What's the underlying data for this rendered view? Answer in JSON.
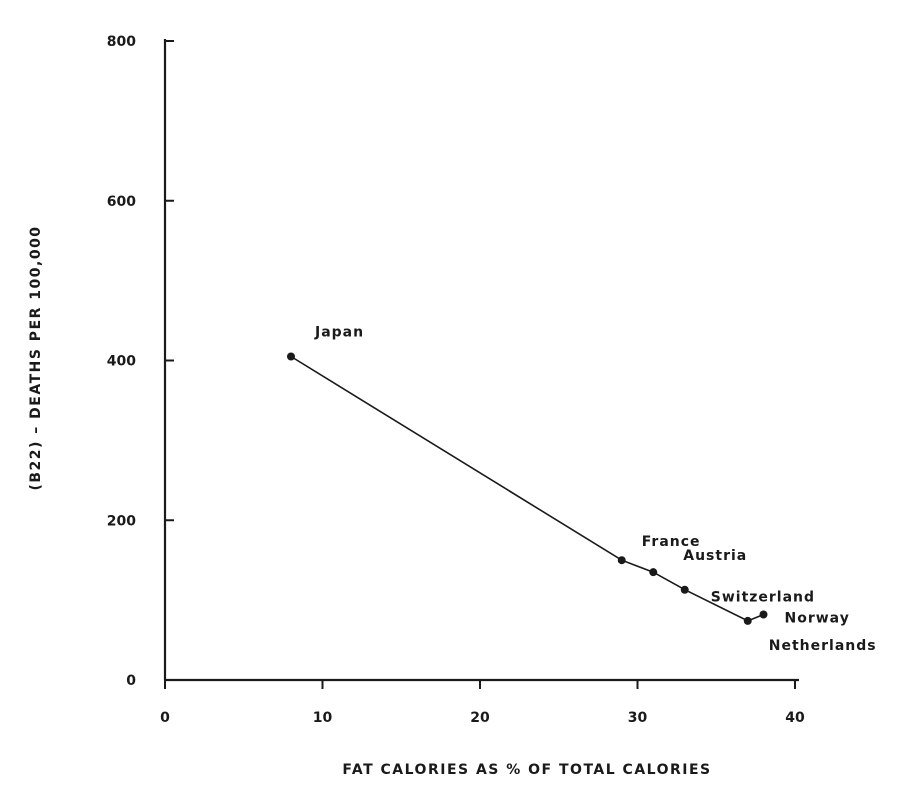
{
  "chart_data": {
    "type": "line",
    "title": "",
    "xlabel": "FAT CALORIES AS % OF TOTAL CALORIES",
    "ylabel": "(B22) – DEATHS PER 100,000",
    "xlim": [
      0,
      40
    ],
    "ylim": [
      0,
      800
    ],
    "xticks": [
      0,
      10,
      20,
      30,
      40
    ],
    "yticks": [
      0,
      200,
      400,
      600,
      800
    ],
    "grid": false,
    "series": [
      {
        "points": [
          {
            "label": "Japan",
            "x": 8,
            "y": 405
          },
          {
            "label": "France",
            "x": 29,
            "y": 150
          },
          {
            "label": "Austria",
            "x": 31,
            "y": 135
          },
          {
            "label": "Switzerland",
            "x": 33,
            "y": 113
          },
          {
            "label": "Netherlands",
            "x": 37,
            "y": 74
          },
          {
            "label": "Norway",
            "x": 38,
            "y": 82
          }
        ]
      }
    ],
    "colors": {
      "ink": "#1a1a1a"
    }
  }
}
